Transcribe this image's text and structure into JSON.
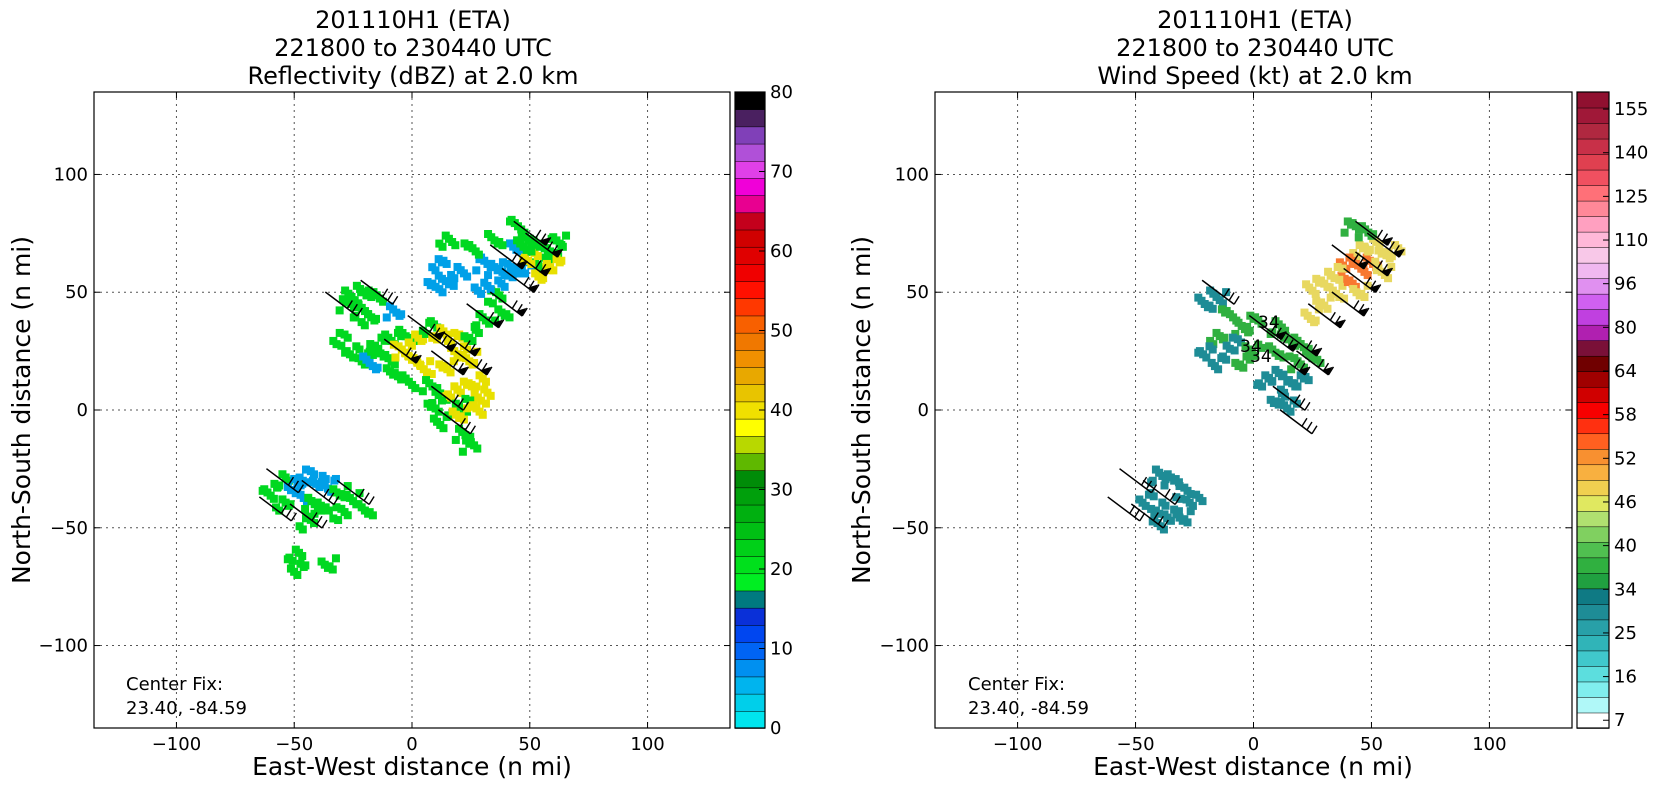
{
  "chart_data": [
    {
      "type": "heatmap",
      "title": [
        "201110H1 (ETA)",
        "221800 to 230440 UTC",
        "Reflectivity (dBZ) at 2.0 km"
      ],
      "xlabel": "East-West distance (n mi)",
      "ylabel": "North-South distance (n mi)",
      "xlim": [
        -135,
        135
      ],
      "ylim": [
        -135,
        135
      ],
      "xticks": [
        -100,
        -50,
        0,
        50,
        100
      ],
      "yticks": [
        -100,
        -50,
        0,
        50,
        100
      ],
      "grid": true,
      "annotation": [
        "Center Fix:",
        "23.40, -84.59"
      ],
      "colorbar": {
        "ticks": [
          0,
          10,
          20,
          30,
          40,
          50,
          60,
          70,
          80
        ],
        "colors": [
          "#00e5ee",
          "#00cfea",
          "#00b4ee",
          "#0090f0",
          "#0064f4",
          "#0046f0",
          "#0a30d8",
          "#007a80",
          "#00ee22",
          "#00e01c",
          "#00d018",
          "#00c014",
          "#00b010",
          "#00a00c",
          "#008c08",
          "#5fb800",
          "#b8d800",
          "#ffff00",
          "#f0e000",
          "#e8c400",
          "#e8a800",
          "#f09000",
          "#f07800",
          "#f86000",
          "#ff3800",
          "#ff1000",
          "#f00000",
          "#e00000",
          "#d00000",
          "#c4001c",
          "#e80090",
          "#f000d8",
          "#e040e8",
          "#b050d8",
          "#8040b8",
          "#4a2060",
          "#000000"
        ]
      },
      "series": [
        {
          "type": "echo",
          "points": [
            [
              -25,
              48,
              1
            ],
            [
              -20,
              50,
              1
            ],
            [
              -15,
              48,
              1
            ],
            [
              -8,
              42,
              0
            ],
            [
              -28,
              45,
              1
            ],
            [
              -22,
              42,
              1
            ],
            [
              -18,
              38,
              1
            ],
            [
              -30,
              30,
              1
            ],
            [
              -25,
              25,
              1
            ],
            [
              -20,
              22,
              1
            ],
            [
              -15,
              28,
              1
            ],
            [
              -8,
              30,
              1
            ],
            [
              -2,
              32,
              1
            ],
            [
              -10,
              22,
              1
            ],
            [
              -18,
              20,
              0
            ],
            [
              -8,
              15,
              1
            ],
            [
              -5,
              25,
              2
            ],
            [
              2,
              30,
              2
            ],
            [
              8,
              35,
              1
            ],
            [
              12,
              32,
              2
            ],
            [
              18,
              30,
              2
            ],
            [
              25,
              32,
              1
            ],
            [
              20,
              25,
              2
            ],
            [
              25,
              22,
              2
            ],
            [
              15,
              18,
              2
            ],
            [
              5,
              18,
              2
            ],
            [
              0,
              22,
              2
            ],
            [
              -2,
              12,
              1
            ],
            [
              8,
              10,
              1
            ],
            [
              12,
              5,
              1
            ],
            [
              18,
              8,
              2
            ],
            [
              22,
              10,
              2
            ],
            [
              28,
              12,
              2
            ],
            [
              30,
              6,
              2
            ],
            [
              22,
              2,
              1
            ],
            [
              10,
              2,
              1
            ],
            [
              12,
              -5,
              1
            ],
            [
              20,
              -2,
              2
            ],
            [
              28,
              0,
              2
            ],
            [
              22,
              -10,
              1
            ],
            [
              25,
              -15,
              1
            ],
            [
              30,
              38,
              1
            ],
            [
              38,
              40,
              1
            ],
            [
              35,
              48,
              1
            ],
            [
              30,
              52,
              0
            ],
            [
              40,
              55,
              0
            ],
            [
              48,
              60,
              0
            ],
            [
              55,
              62,
              1
            ],
            [
              60,
              68,
              1
            ],
            [
              62,
              72,
              1
            ],
            [
              50,
              72,
              1
            ],
            [
              45,
              68,
              0
            ],
            [
              42,
              60,
              0
            ],
            [
              35,
              60,
              0
            ],
            [
              30,
              62,
              0
            ],
            [
              20,
              58,
              0
            ],
            [
              15,
              52,
              0
            ],
            [
              10,
              55,
              0
            ],
            [
              60,
              62,
              2
            ],
            [
              55,
              58,
              2
            ],
            [
              50,
              64,
              2
            ],
            [
              48,
              70,
              1
            ],
            [
              55,
              70,
              1
            ],
            [
              45,
              78,
              1
            ],
            [
              35,
              72,
              1
            ],
            [
              25,
              68,
              1
            ],
            [
              15,
              72,
              1
            ],
            [
              12,
              62,
              0
            ],
            [
              -55,
              -30,
              1
            ],
            [
              -50,
              -32,
              0
            ],
            [
              -45,
              -28,
              0
            ],
            [
              -40,
              -30,
              0
            ],
            [
              -35,
              -32,
              0
            ],
            [
              -30,
              -35,
              1
            ],
            [
              -25,
              -38,
              1
            ],
            [
              -20,
              -42,
              1
            ],
            [
              -48,
              -36,
              0
            ],
            [
              -42,
              -40,
              1
            ],
            [
              -38,
              -42,
              1
            ],
            [
              -30,
              -44,
              1
            ],
            [
              -55,
              -40,
              1
            ],
            [
              -45,
              -48,
              1
            ],
            [
              -50,
              -62,
              1
            ],
            [
              -48,
              -68,
              1
            ],
            [
              -35,
              -65,
              1
            ],
            [
              -60,
              -35,
              1
            ]
          ]
        },
        {
          "type": "barbs",
          "points": [
            [
              -30,
              45,
              "light"
            ],
            [
              -15,
              50,
              "light"
            ],
            [
              5,
              35,
              "strong"
            ],
            [
              10,
              30,
              "strong"
            ],
            [
              20,
              28,
              "strong"
            ],
            [
              25,
              20,
              "strong"
            ],
            [
              -5,
              25,
              "strong"
            ],
            [
              15,
              20,
              "strong"
            ],
            [
              30,
              40,
              "strong"
            ],
            [
              40,
              45,
              "strong"
            ],
            [
              45,
              55,
              "strong"
            ],
            [
              50,
              62,
              "strong"
            ],
            [
              55,
              70,
              "strong"
            ],
            [
              40,
              65,
              "strong"
            ],
            [
              50,
              75,
              "strong"
            ],
            [
              -55,
              -30,
              "light"
            ],
            [
              -40,
              -35,
              "light"
            ],
            [
              -25,
              -35,
              "light"
            ],
            [
              -58,
              -42,
              "light"
            ],
            [
              -45,
              -45,
              "light"
            ],
            [
              15,
              5,
              "light"
            ],
            [
              18,
              -5,
              "light"
            ]
          ]
        }
      ]
    },
    {
      "type": "heatmap",
      "title": [
        "201110H1 (ETA)",
        "221800 to 230440 UTC",
        "Wind Speed (kt) at 2.0 km"
      ],
      "xlabel": "East-West distance (n mi)",
      "ylabel": "North-South distance (n mi)",
      "xlim": [
        -135,
        135
      ],
      "ylim": [
        -135,
        135
      ],
      "xticks": [
        -100,
        -50,
        0,
        50,
        100
      ],
      "yticks": [
        -100,
        -50,
        0,
        50,
        100
      ],
      "grid": true,
      "annotation": [
        "Center Fix:",
        "23.40, -84.59"
      ],
      "contour_labels": [
        "34",
        "34",
        "34"
      ],
      "colorbar": {
        "ticks": [
          "7",
          "16",
          "25",
          "34",
          "40",
          "46",
          "52",
          "58",
          "64",
          "80",
          "96",
          "110",
          "125",
          "140",
          "155"
        ],
        "colors": [
          "#ffffff",
          "#b0f8f8",
          "#80eeee",
          "#5cdede",
          "#40c8cc",
          "#30b4b8",
          "#28a0a8",
          "#1e8c96",
          "#0f7a84",
          "#20a040",
          "#30b040",
          "#50c050",
          "#80d060",
          "#b0e070",
          "#e0e860",
          "#f0d050",
          "#f8b040",
          "#f89030",
          "#ff6020",
          "#ff3010",
          "#f80000",
          "#d00000",
          "#a00000",
          "#700000",
          "#7a1038",
          "#b020b0",
          "#c040e0",
          "#d060f0",
          "#e090f0",
          "#f0b8f0",
          "#f8c8e8",
          "#ffb8d8",
          "#ffa0c0",
          "#ff8898",
          "#ff7078",
          "#f05060",
          "#e04050",
          "#c83048",
          "#b02840",
          "#a01838",
          "#901030"
        ]
      },
      "series": [
        {
          "type": "wind",
          "points": [
            [
              -15,
              48,
              0
            ],
            [
              -20,
              45,
              0
            ],
            [
              -10,
              40,
              1
            ],
            [
              -5,
              35,
              1
            ],
            [
              0,
              38,
              1
            ],
            [
              10,
              35,
              1
            ],
            [
              -15,
              30,
              1
            ],
            [
              -8,
              28,
              0
            ],
            [
              -20,
              25,
              0
            ],
            [
              -15,
              20,
              0
            ],
            [
              -5,
              20,
              1
            ],
            [
              0,
              25,
              1
            ],
            [
              10,
              25,
              1
            ],
            [
              15,
              30,
              1
            ],
            [
              20,
              28,
              1
            ],
            [
              25,
              22,
              1
            ],
            [
              18,
              20,
              1
            ],
            [
              10,
              15,
              0
            ],
            [
              15,
              10,
              0
            ],
            [
              5,
              12,
              0
            ],
            [
              20,
              12,
              0
            ],
            [
              10,
              5,
              0
            ],
            [
              15,
              2,
              0
            ],
            [
              25,
              40,
              2
            ],
            [
              30,
              45,
              2
            ],
            [
              35,
              50,
              2
            ],
            [
              40,
              55,
              3
            ],
            [
              45,
              60,
              3
            ],
            [
              50,
              62,
              3
            ],
            [
              55,
              65,
              2
            ],
            [
              60,
              68,
              2
            ],
            [
              45,
              68,
              2
            ],
            [
              50,
              70,
              2
            ],
            [
              40,
              62,
              3
            ],
            [
              35,
              58,
              2
            ],
            [
              30,
              55,
              2
            ],
            [
              25,
              52,
              2
            ],
            [
              45,
              50,
              2
            ],
            [
              55,
              58,
              2
            ],
            [
              48,
              76,
              1
            ],
            [
              42,
              78,
              1
            ],
            [
              -40,
              -28,
              0
            ],
            [
              -35,
              -30,
              0
            ],
            [
              -30,
              -35,
              0
            ],
            [
              -25,
              -38,
              0
            ],
            [
              -45,
              -38,
              0
            ],
            [
              -40,
              -42,
              0
            ],
            [
              -35,
              -45,
              0
            ],
            [
              -30,
              -45,
              0
            ],
            [
              -40,
              -48,
              0
            ]
          ]
        },
        {
          "type": "barbs",
          "points": [
            [
              -15,
              50,
              "light"
            ],
            [
              5,
              35,
              "strong"
            ],
            [
              10,
              30,
              "strong"
            ],
            [
              20,
              28,
              "strong"
            ],
            [
              25,
              20,
              "strong"
            ],
            [
              15,
              20,
              "strong"
            ],
            [
              30,
              40,
              "strong"
            ],
            [
              40,
              45,
              "strong"
            ],
            [
              45,
              55,
              "strong"
            ],
            [
              50,
              62,
              "strong"
            ],
            [
              55,
              70,
              "strong"
            ],
            [
              40,
              65,
              "strong"
            ],
            [
              50,
              75,
              "strong"
            ],
            [
              -50,
              -30,
              "light"
            ],
            [
              -40,
              -35,
              "light"
            ],
            [
              -55,
              -42,
              "light"
            ],
            [
              -45,
              -45,
              "light"
            ],
            [
              15,
              5,
              "light"
            ],
            [
              18,
              -5,
              "light"
            ]
          ]
        }
      ]
    }
  ]
}
